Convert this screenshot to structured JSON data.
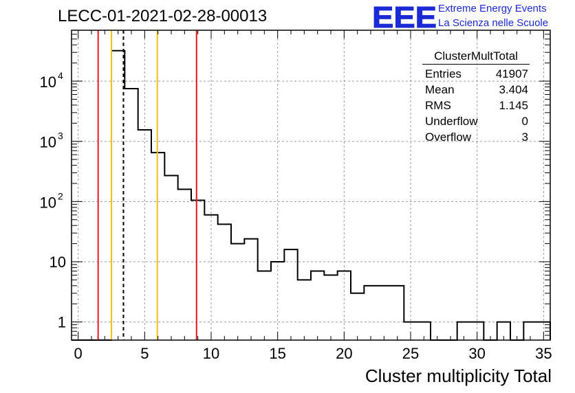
{
  "title": "LECC-01-2021-02-28-00013",
  "logo": {
    "mark": "EEE",
    "line1": "Extreme Energy Events",
    "line2": "La Scienza nelle Scuole",
    "color": "#1a2bd6"
  },
  "stats_box": {
    "name": "ClusterMultTotal",
    "rows": [
      {
        "label": "Entries",
        "value": "41907"
      },
      {
        "label": "Mean",
        "value": "3.404"
      },
      {
        "label": "RMS",
        "value": "1.145"
      },
      {
        "label": "Underflow",
        "value": "0"
      },
      {
        "label": "Overflow",
        "value": "3"
      }
    ]
  },
  "chart_data": {
    "type": "bar",
    "histogram": true,
    "xlabel": "Cluster multiplicity Total",
    "ylabel": "",
    "xlim": [
      -0.5,
      35.5
    ],
    "ylim": [
      0.5,
      70000
    ],
    "y_scale": "log",
    "grid": true,
    "x_ticks": [
      0,
      5,
      10,
      15,
      20,
      25,
      30,
      35
    ],
    "y_ticks": [
      {
        "value": 1,
        "label": "1",
        "exp": ""
      },
      {
        "value": 10,
        "label": "10",
        "exp": ""
      },
      {
        "value": 100,
        "label": "10",
        "exp": "2"
      },
      {
        "value": 1000,
        "label": "10",
        "exp": "3"
      },
      {
        "value": 10000,
        "label": "10",
        "exp": "4"
      }
    ],
    "bin_width": 1,
    "bin_centers": [
      0,
      1,
      2,
      3,
      4,
      5,
      6,
      7,
      8,
      9,
      10,
      11,
      12,
      13,
      14,
      15,
      16,
      17,
      18,
      19,
      20,
      21,
      22,
      23,
      24,
      25,
      26,
      27,
      28,
      29,
      30,
      31,
      32,
      33,
      34,
      35
    ],
    "values": [
      0,
      0,
      0,
      32000,
      7500,
      1550,
      650,
      270,
      160,
      105,
      60,
      42,
      20,
      24,
      7,
      10,
      16,
      5,
      7,
      6,
      7,
      3,
      4,
      4,
      4,
      1,
      1,
      0,
      0,
      1,
      1,
      0,
      1,
      0,
      1,
      1
    ],
    "vertical_lines": [
      {
        "x": 1.5,
        "color": "#e8141c",
        "style": "solid"
      },
      {
        "x": 2.5,
        "color": "#f2c010",
        "style": "solid"
      },
      {
        "x": 3.404,
        "color": "#000000",
        "style": "dashed"
      },
      {
        "x": 5.95,
        "color": "#f2c010",
        "style": "solid"
      },
      {
        "x": 8.9,
        "color": "#e8141c",
        "style": "solid"
      }
    ]
  }
}
